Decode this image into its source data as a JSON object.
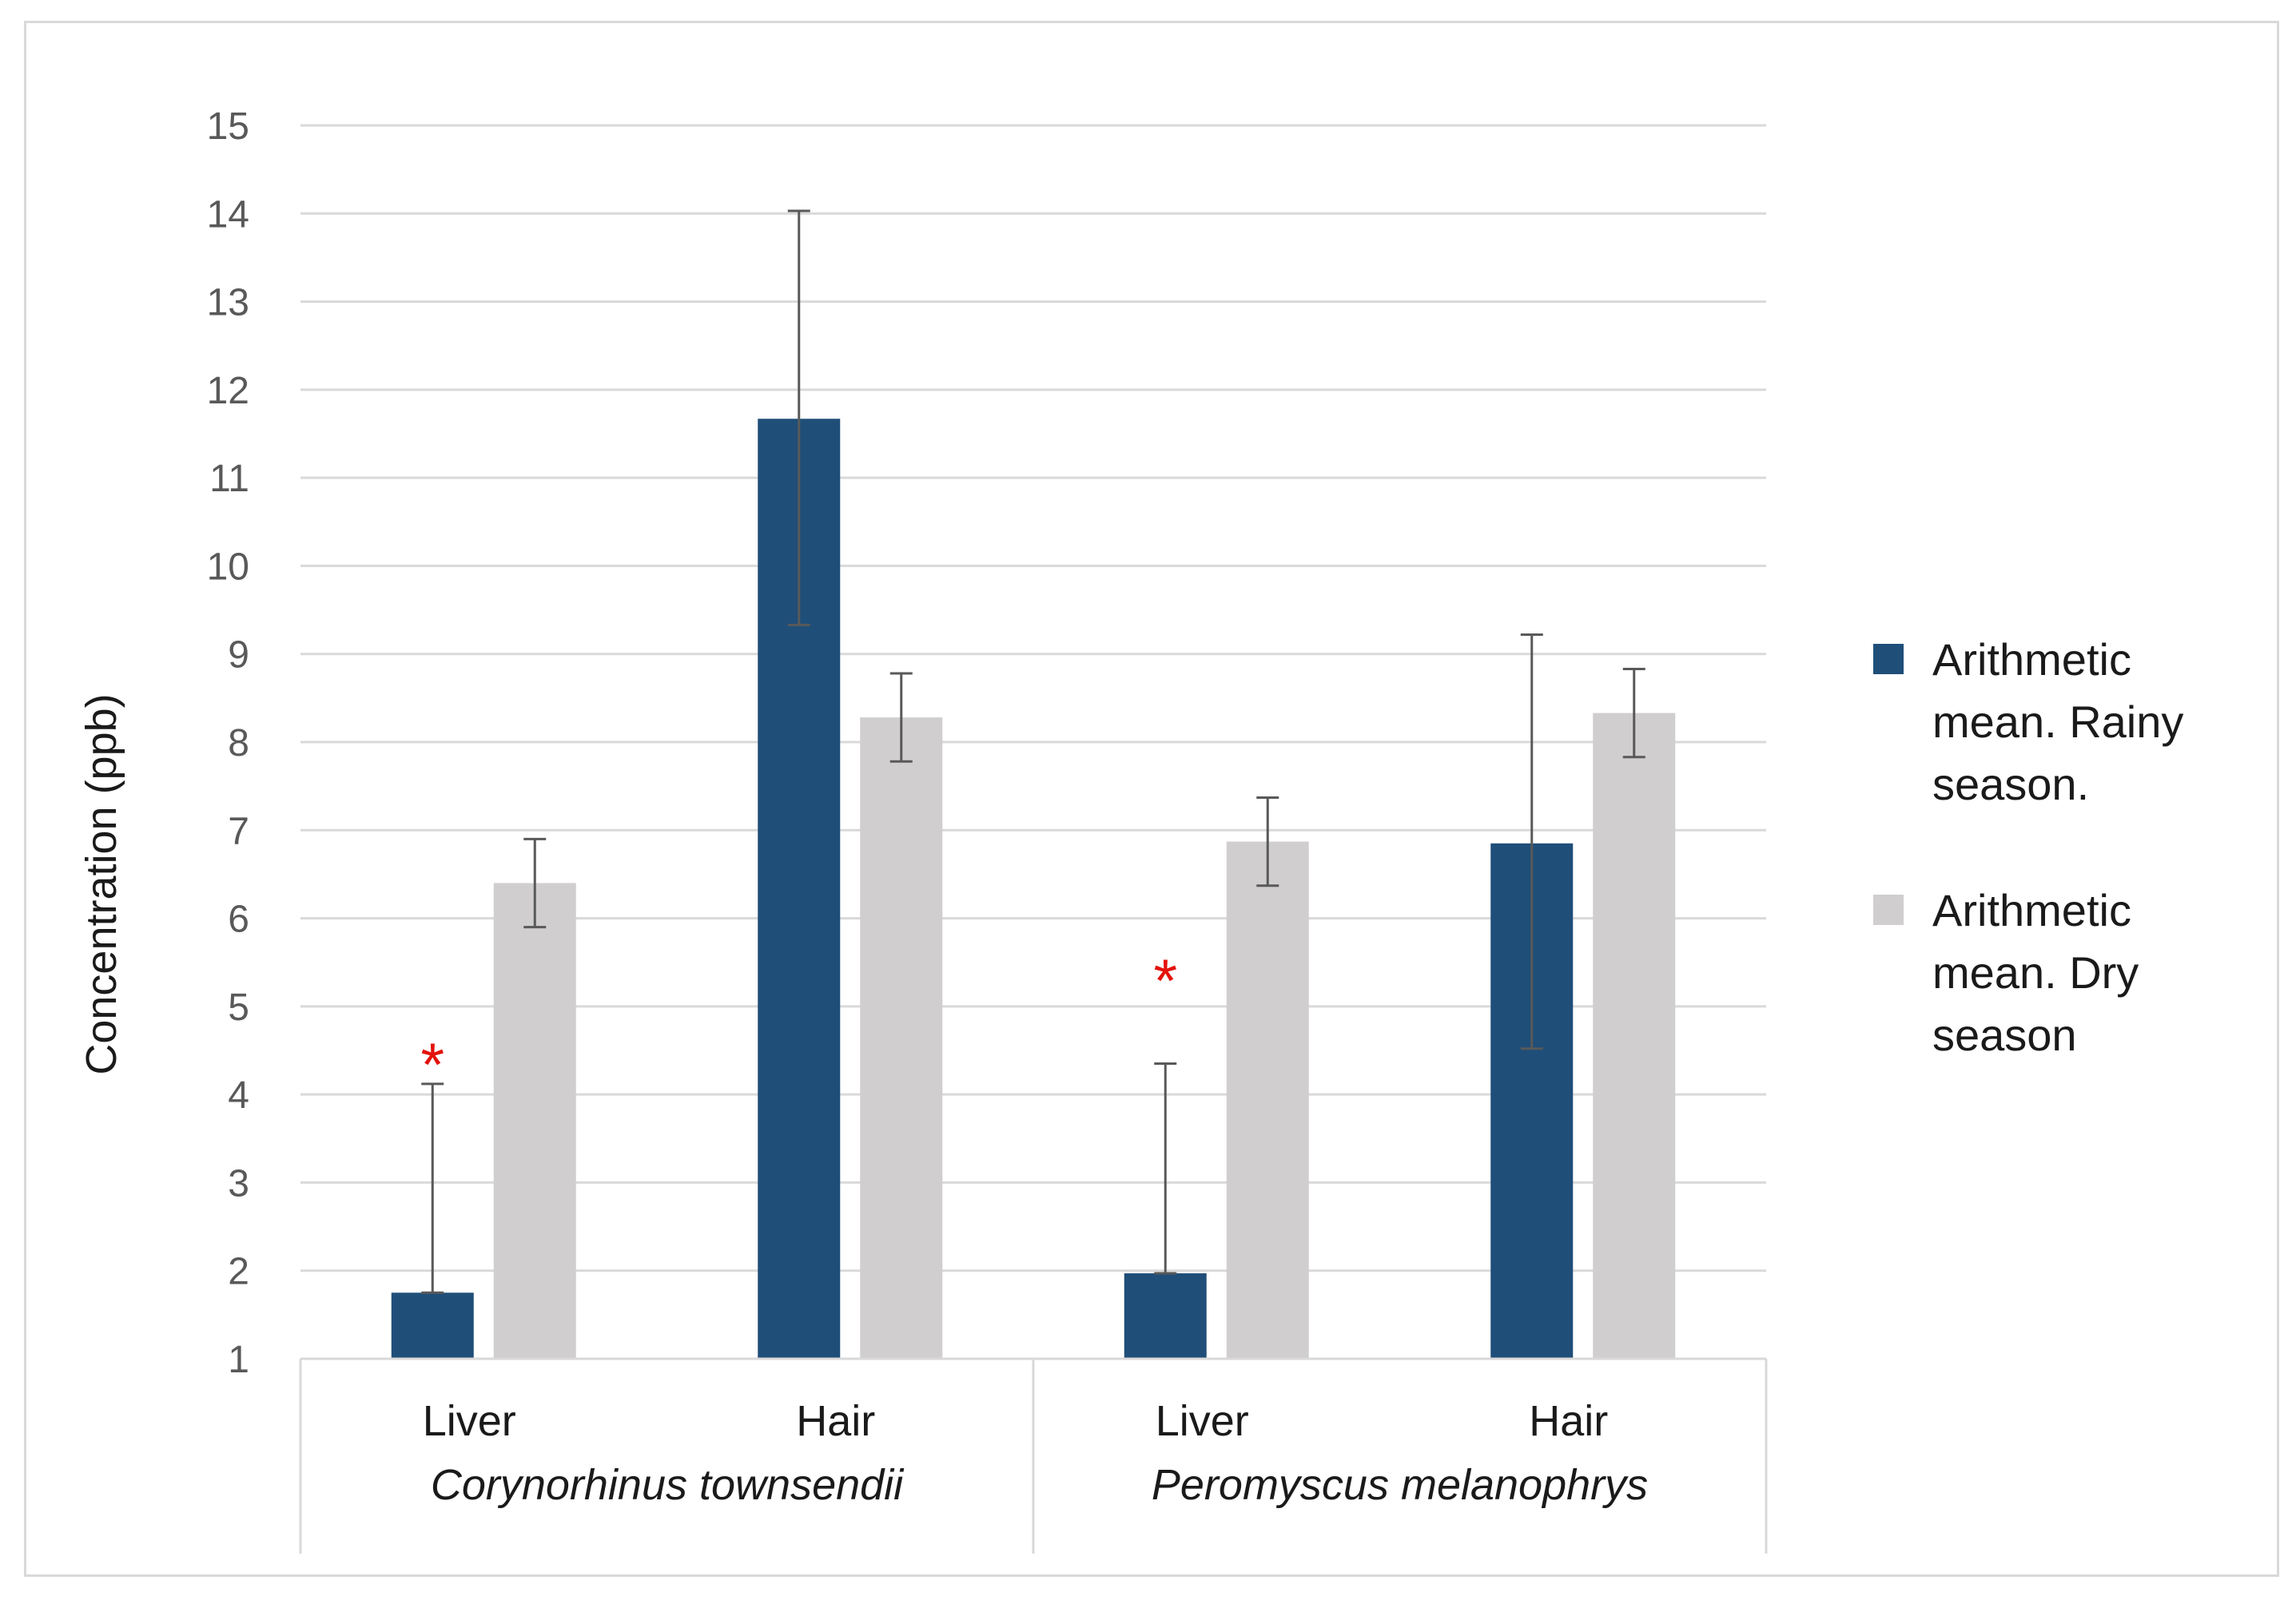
{
  "chart_data": {
    "type": "bar",
    "ylabel": "Concentration (ppb)",
    "ylim": [
      1,
      15
    ],
    "yticks": [
      1,
      2,
      3,
      4,
      5,
      6,
      7,
      8,
      9,
      10,
      11,
      12,
      13,
      14,
      15
    ],
    "grid": true,
    "legend_position": "right",
    "groups": [
      {
        "name": "Corynorhinus townsendii",
        "categories": [
          "Liver",
          "Hair"
        ]
      },
      {
        "name": "Peromyscus melanophrys",
        "categories": [
          "Liver",
          "Hair"
        ]
      }
    ],
    "categories": [
      "Liver",
      "Hair",
      "Liver",
      "Hair"
    ],
    "series": [
      {
        "name": "Arithmetic mean. Rainy season.",
        "legend_lines": [
          "Arithmetic",
          "mean. Rainy",
          "season."
        ],
        "color": "#1f4e79",
        "values": [
          1.75,
          11.67,
          1.97,
          6.85
        ],
        "error_low": [
          1.75,
          9.33,
          1.97,
          4.52
        ],
        "error_high": [
          4.12,
          14.03,
          4.35,
          9.22
        ]
      },
      {
        "name": "Arithmetic mean. Dry season",
        "legend_lines": [
          "Arithmetic",
          "mean. Dry",
          "season"
        ],
        "color": "#d0cece",
        "values": [
          6.4,
          8.28,
          6.87,
          8.33
        ],
        "error_low": [
          5.9,
          7.78,
          6.37,
          7.83
        ],
        "error_high": [
          6.9,
          8.78,
          7.37,
          8.83
        ]
      }
    ],
    "annotations": [
      {
        "text": "*",
        "category_index": 0,
        "series_index": 0,
        "value": 4.5,
        "color": "#e3120b"
      },
      {
        "text": "*",
        "category_index": 2,
        "series_index": 0,
        "value": 5.45,
        "color": "#e3120b"
      }
    ]
  }
}
